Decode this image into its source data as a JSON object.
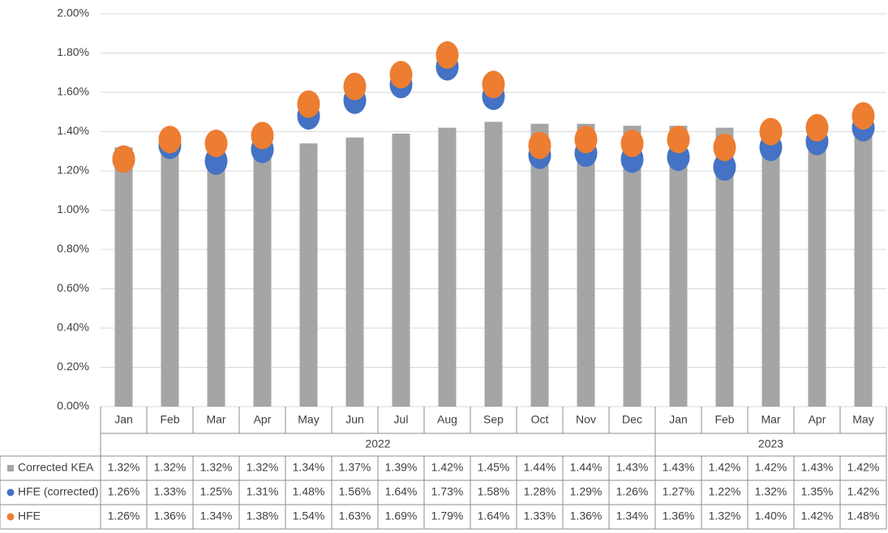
{
  "chart_data": {
    "type": "combo",
    "groups": [
      {
        "label": "2022",
        "categories": [
          "Jan",
          "Feb",
          "Mar",
          "Apr",
          "May",
          "Jun",
          "Jul",
          "Aug",
          "Sep",
          "Oct",
          "Nov",
          "Dec"
        ]
      },
      {
        "label": "2023",
        "categories": [
          "Jan",
          "Feb",
          "Mar",
          "Apr",
          "May"
        ]
      }
    ],
    "series": [
      {
        "name": "Corrected KEA",
        "type": "bar",
        "color": "#a5a5a5",
        "values": [
          1.32,
          1.32,
          1.32,
          1.32,
          1.34,
          1.37,
          1.39,
          1.42,
          1.45,
          1.44,
          1.44,
          1.43,
          1.43,
          1.42,
          1.42,
          1.43,
          1.42
        ],
        "value_labels": [
          "1.32%",
          "1.32%",
          "1.32%",
          "1.32%",
          "1.34%",
          "1.37%",
          "1.39%",
          "1.42%",
          "1.45%",
          "1.44%",
          "1.44%",
          "1.43%",
          "1.43%",
          "1.42%",
          "1.42%",
          "1.43%",
          "1.42%"
        ]
      },
      {
        "name": "HFE (corrected)",
        "type": "scatter",
        "color": "#4472c4",
        "values": [
          1.26,
          1.33,
          1.25,
          1.31,
          1.48,
          1.56,
          1.64,
          1.73,
          1.58,
          1.28,
          1.29,
          1.26,
          1.27,
          1.22,
          1.32,
          1.35,
          1.42
        ],
        "value_labels": [
          "1.26%",
          "1.33%",
          "1.25%",
          "1.31%",
          "1.48%",
          "1.56%",
          "1.64%",
          "1.73%",
          "1.58%",
          "1.28%",
          "1.29%",
          "1.26%",
          "1.27%",
          "1.22%",
          "1.32%",
          "1.35%",
          "1.42%"
        ]
      },
      {
        "name": "HFE",
        "type": "scatter",
        "color": "#ed7d31",
        "values": [
          1.26,
          1.36,
          1.34,
          1.38,
          1.54,
          1.63,
          1.69,
          1.79,
          1.64,
          1.33,
          1.36,
          1.34,
          1.36,
          1.32,
          1.4,
          1.42,
          1.48
        ],
        "value_labels": [
          "1.26%",
          "1.36%",
          "1.34%",
          "1.38%",
          "1.54%",
          "1.63%",
          "1.69%",
          "1.79%",
          "1.64%",
          "1.33%",
          "1.36%",
          "1.34%",
          "1.36%",
          "1.32%",
          "1.40%",
          "1.42%",
          "1.48%"
        ]
      }
    ],
    "ylim": [
      0,
      2
    ],
    "yticks": [
      {
        "value": 0,
        "label": "0.00%"
      },
      {
        "value": 0.2,
        "label": "0.20%"
      },
      {
        "value": 0.4,
        "label": "0.40%"
      },
      {
        "value": 0.6,
        "label": "0.60%"
      },
      {
        "value": 0.8,
        "label": "0.80%"
      },
      {
        "value": 1,
        "label": "1.00%"
      },
      {
        "value": 1.2,
        "label": "1.20%"
      },
      {
        "value": 1.4,
        "label": "1.40%"
      },
      {
        "value": 1.6,
        "label": "1.60%"
      },
      {
        "value": 1.8,
        "label": "1.80%"
      },
      {
        "value": 2,
        "label": "2.00%"
      }
    ],
    "grid": true
  }
}
